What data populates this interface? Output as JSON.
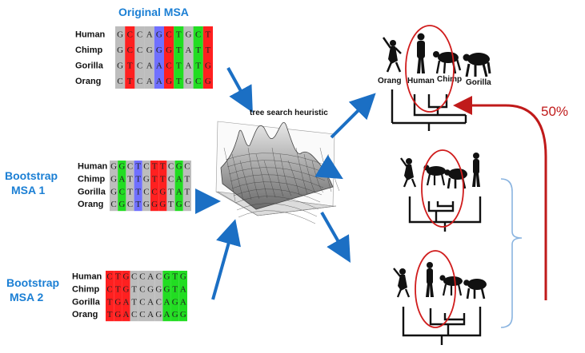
{
  "titles": {
    "original": "Original MSA",
    "boot1_line1": "Bootstrap",
    "boot1_line2": "MSA 1",
    "boot2_line1": "Bootstrap",
    "boot2_line2": "MSA 2",
    "heuristic": "tree search heuristic",
    "support": "50%"
  },
  "taxa": [
    "Human",
    "Chimp",
    "Gorilla",
    "Orang"
  ],
  "tree_labels": [
    "Orang",
    "Human",
    "Chimp",
    "Gorilla"
  ],
  "colors": {
    "G": "#bdbdbd",
    "C": "#e8e8e8",
    "A": "#ff2020",
    "T": "#22dd22",
    "purple": "#7070ff",
    "blue": "#1b6fc4",
    "red": "#c01a1a",
    "bracket": "#8ab4e0"
  },
  "msas": [
    {
      "name": "original",
      "columns": [
        "G",
        "C",
        "C",
        "A",
        "G",
        "C",
        "T",
        "G",
        "C",
        "T"
      ],
      "rows": [
        "GCCAGCTGCT",
        "GCCGGGTATT",
        "GTCAACTATG",
        "CTCAAGTGCG"
      ],
      "colfill": [
        "#bdbdbd",
        "#ff2020",
        "#bdbdbd",
        "#bdbdbd",
        "#7070ff",
        "#ff2020",
        "#22dd22",
        "#bdbdbd",
        "#22dd22",
        "#ff2020"
      ]
    },
    {
      "name": "bootstrap1",
      "rows": [
        "GGCTCTTCGC",
        "GATTGTTCAT",
        "GCTTCCGTAT",
        "CGCTGGGTGC"
      ],
      "colfill": [
        "#bdbdbd",
        "#22dd22",
        "#bdbdbd",
        "#7070ff",
        "#bdbdbd",
        "#ff2020",
        "#ff2020",
        "#bdbdbd",
        "#22dd22",
        "#bdbdbd"
      ]
    },
    {
      "name": "bootstrap2",
      "rows": [
        "CTGCCACGTG",
        "CTGTCGGGTA",
        "TGATCACAGA",
        "TGACCAGAGG"
      ],
      "colfill": [
        "#ff2020",
        "#ff2020",
        "#ff2020",
        "#bdbdbd",
        "#bdbdbd",
        "#bdbdbd",
        "#bdbdbd",
        "#22dd22",
        "#22dd22",
        "#22dd22"
      ]
    }
  ]
}
